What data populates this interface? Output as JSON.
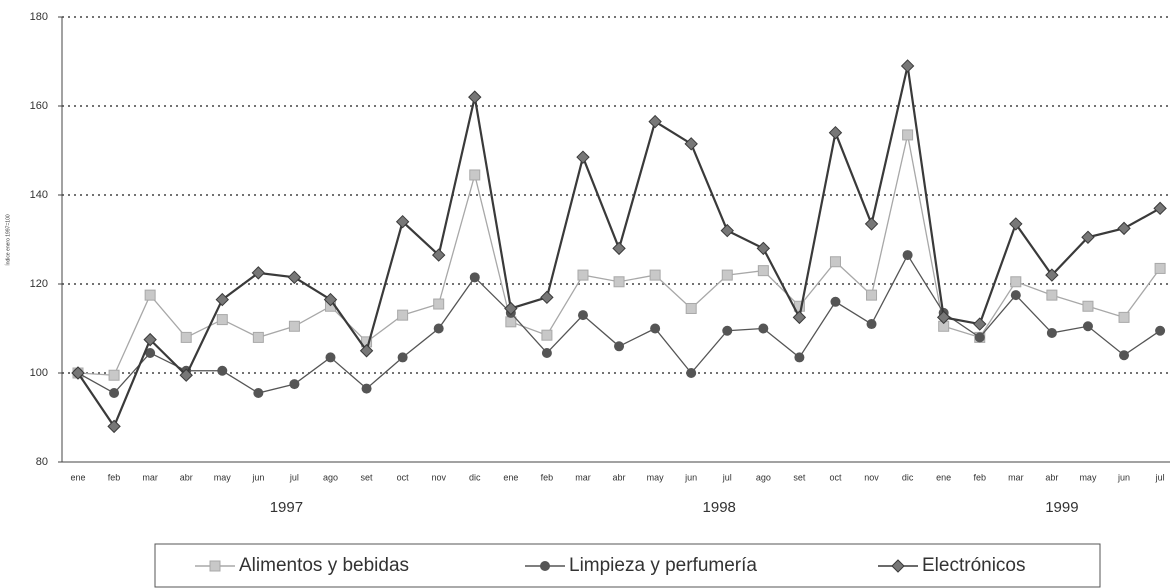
{
  "chart_data": {
    "type": "line",
    "y_label": "Índice enero 1997=100",
    "categories": [
      "ene",
      "feb",
      "mar",
      "abr",
      "may",
      "jun",
      "jul",
      "ago",
      "set",
      "oct",
      "nov",
      "dic",
      "ene",
      "feb",
      "mar",
      "abr",
      "may",
      "jun",
      "jul",
      "ago",
      "set",
      "oct",
      "nov",
      "dic",
      "ene",
      "feb",
      "mar",
      "abr",
      "may",
      "jun",
      "jul"
    ],
    "x_groups": [
      {
        "label": "1997",
        "span": 12
      },
      {
        "label": "1998",
        "span": 12
      },
      {
        "label": "1999",
        "span": 7
      }
    ],
    "series": [
      {
        "name": "Alimentos y bebidas",
        "color": "#a8a8a8",
        "marker": "square",
        "values": [
          100,
          99.5,
          117.5,
          108,
          112,
          108,
          110.5,
          115,
          107,
          113,
          115.5,
          144.5,
          111.5,
          108.5,
          122,
          120.5,
          122,
          114.5,
          122,
          123,
          115,
          125,
          117.5,
          153.5,
          110.5,
          108,
          120.5,
          117.5,
          115,
          112.5,
          123.5
        ]
      },
      {
        "name": "Limpieza y perfumería",
        "color": "#555555",
        "marker": "circle",
        "values": [
          100,
          95.5,
          104.5,
          100.5,
          100.5,
          95.5,
          97.5,
          103.5,
          96.5,
          103.5,
          110,
          121.5,
          113.5,
          104.5,
          113,
          106,
          110,
          100,
          109.5,
          110,
          103.5,
          116,
          111,
          126.5,
          113.5,
          108,
          117.5,
          109,
          110.5,
          104,
          109.5
        ]
      },
      {
        "name": "Electrónicos",
        "color": "#3a3a3a",
        "marker": "diamond",
        "values": [
          100,
          88,
          107.5,
          99.5,
          116.5,
          122.5,
          121.5,
          116.5,
          105,
          134,
          126.5,
          162,
          114.5,
          117,
          148.5,
          128,
          156.5,
          151.5,
          132,
          128,
          112.5,
          154,
          133.5,
          169,
          112.5,
          111,
          133.5,
          122,
          130.5,
          132.5,
          137
        ]
      }
    ],
    "ylim": [
      80,
      180
    ],
    "yticks": [
      80,
      100,
      120,
      140,
      160,
      180
    ],
    "grid": true
  }
}
